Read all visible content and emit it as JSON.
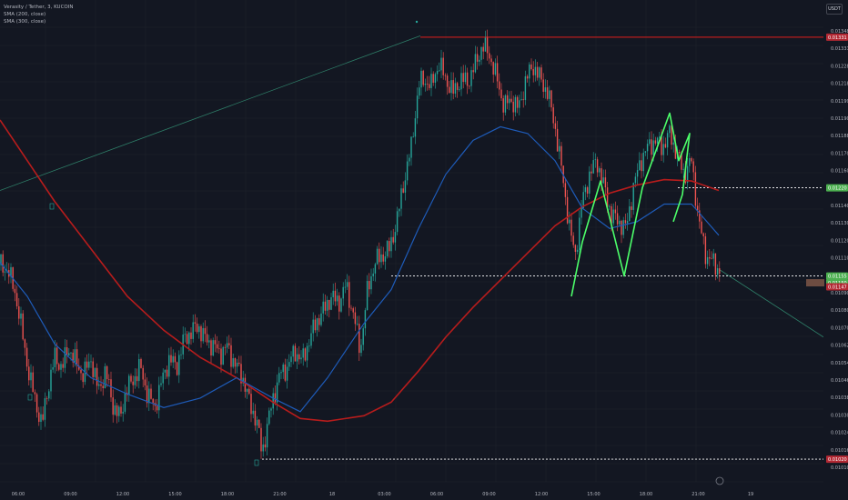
{
  "legend": {
    "symbol": "Verasity / Tether, 3, KUCOIN",
    "sma200": "SMA (200, close)",
    "sma300": "SMA (300, close)"
  },
  "currency": "USDT",
  "price_axis": {
    "ticks": [
      "0.01348",
      "0.01331",
      "0.01228",
      "0.01218",
      "0.01199",
      "0.01190",
      "0.01188",
      "0.01170",
      "0.01160",
      "0.01150",
      "0.01140",
      "0.01130",
      "0.01120",
      "0.01110",
      "0.01100",
      "0.01090",
      "0.01080",
      "0.01070",
      "0.01062",
      "0.01054",
      "0.01046",
      "0.01038",
      "0.01030",
      "0.01024",
      "0.01016",
      "0.01010"
    ],
    "labels": {
      "high": "0.01331",
      "upper": "0.01220",
      "mid": "0.01155",
      "last_a": "0.01150",
      "last_b": "0.01147",
      "low": "0.01020"
    }
  },
  "time_axis": [
    "06:00",
    "09:00",
    "12:00",
    "15:00",
    "18:00",
    "21:00",
    "18",
    "03:00",
    "06:00",
    "09:00",
    "12:00",
    "15:00",
    "18:00",
    "21:00",
    "19"
  ],
  "colors": {
    "background": "#131722",
    "grid": "#1e222d",
    "candle_up": "#26a69a",
    "candle_down": "#ef5350",
    "sma200": "#b71c1c",
    "sma300": "#1e5bb8",
    "pattern": "#4cff6a",
    "label_red": "#b22833",
    "label_green": "#4caf50"
  },
  "chart_data": {
    "type": "candlestick",
    "title": "Verasity / Tether, 3, KUCOIN",
    "ylim": [
      0.0101,
      0.01345
    ],
    "close_path": [
      [
        0,
        0.01163
      ],
      [
        8,
        0.0116
      ],
      [
        16,
        0.01145
      ],
      [
        24,
        0.01115
      ],
      [
        32,
        0.01082
      ],
      [
        40,
        0.0106
      ],
      [
        46,
        0.01045
      ],
      [
        52,
        0.0107
      ],
      [
        60,
        0.01095
      ],
      [
        68,
        0.01088
      ],
      [
        76,
        0.01102
      ],
      [
        84,
        0.0109
      ],
      [
        92,
        0.01082
      ],
      [
        100,
        0.01094
      ],
      [
        108,
        0.0107
      ],
      [
        116,
        0.01085
      ],
      [
        124,
        0.0106
      ],
      [
        132,
        0.0105
      ],
      [
        138,
        0.0107
      ],
      [
        146,
        0.01078
      ],
      [
        154,
        0.01088
      ],
      [
        162,
        0.01068
      ],
      [
        170,
        0.01058
      ],
      [
        178,
        0.01078
      ],
      [
        186,
        0.01094
      ],
      [
        194,
        0.01088
      ],
      [
        202,
        0.01108
      ],
      [
        210,
        0.01114
      ],
      [
        218,
        0.01118
      ],
      [
        226,
        0.01108
      ],
      [
        234,
        0.01104
      ],
      [
        242,
        0.01098
      ],
      [
        250,
        0.01103
      ],
      [
        258,
        0.0109
      ],
      [
        266,
        0.01082
      ],
      [
        274,
        0.01062
      ],
      [
        282,
        0.01048
      ],
      [
        288,
        0.01025
      ],
      [
        294,
        0.01045
      ],
      [
        300,
        0.01065
      ],
      [
        308,
        0.01083
      ],
      [
        316,
        0.01088
      ],
      [
        324,
        0.011
      ],
      [
        332,
        0.01092
      ],
      [
        340,
        0.01108
      ],
      [
        348,
        0.01122
      ],
      [
        356,
        0.0113
      ],
      [
        364,
        0.0114
      ],
      [
        372,
        0.01135
      ],
      [
        380,
        0.01148
      ],
      [
        388,
        0.01128
      ],
      [
        396,
        0.011
      ],
      [
        404,
        0.01145
      ],
      [
        412,
        0.01165
      ],
      [
        420,
        0.0117
      ],
      [
        428,
        0.01175
      ],
      [
        436,
        0.01195
      ],
      [
        444,
        0.01225
      ],
      [
        452,
        0.0125
      ],
      [
        460,
        0.01295
      ],
      [
        466,
        0.013
      ],
      [
        474,
        0.01295
      ],
      [
        482,
        0.01312
      ],
      [
        490,
        0.013
      ],
      [
        498,
        0.0129
      ],
      [
        506,
        0.013
      ],
      [
        514,
        0.01298
      ],
      [
        522,
        0.0131
      ],
      [
        530,
        0.01325
      ],
      [
        538,
        0.01318
      ],
      [
        546,
        0.013
      ],
      [
        554,
        0.0128
      ],
      [
        562,
        0.01285
      ],
      [
        570,
        0.01278
      ],
      [
        578,
        0.013
      ],
      [
        586,
        0.0131
      ],
      [
        594,
        0.013
      ],
      [
        602,
        0.0129
      ],
      [
        610,
        0.01265
      ],
      [
        618,
        0.0123
      ],
      [
        626,
        0.0119
      ],
      [
        632,
        0.0117
      ],
      [
        640,
        0.0121
      ],
      [
        648,
        0.0123
      ],
      [
        656,
        0.0124
      ],
      [
        664,
        0.0122
      ],
      [
        672,
        0.012
      ],
      [
        680,
        0.01195
      ],
      [
        688,
        0.0119
      ],
      [
        696,
        0.0122
      ],
      [
        704,
        0.0124
      ],
      [
        712,
        0.0125
      ],
      [
        720,
        0.01255
      ],
      [
        728,
        0.0125
      ],
      [
        736,
        0.0126
      ],
      [
        744,
        0.01245
      ],
      [
        752,
        0.0123
      ],
      [
        760,
        0.0124
      ],
      [
        768,
        0.01195
      ],
      [
        776,
        0.0117
      ],
      [
        784,
        0.01165
      ],
      [
        792,
        0.01158
      ]
    ],
    "sma300_path": [
      [
        0,
        0.01165
      ],
      [
        30,
        0.0114
      ],
      [
        60,
        0.01105
      ],
      [
        100,
        0.0108
      ],
      [
        140,
        0.01068
      ],
      [
        180,
        0.01058
      ],
      [
        220,
        0.01065
      ],
      [
        260,
        0.0108
      ],
      [
        300,
        0.01065
      ],
      [
        330,
        0.01055
      ],
      [
        360,
        0.0108
      ],
      [
        400,
        0.0112
      ],
      [
        430,
        0.01145
      ],
      [
        460,
        0.0119
      ],
      [
        490,
        0.0123
      ],
      [
        520,
        0.01255
      ],
      [
        550,
        0.01265
      ],
      [
        580,
        0.0126
      ],
      [
        610,
        0.0124
      ],
      [
        640,
        0.01205
      ],
      [
        670,
        0.0119
      ],
      [
        700,
        0.01195
      ],
      [
        730,
        0.01208
      ],
      [
        760,
        0.01208
      ],
      [
        790,
        0.01185
      ]
    ],
    "sma200_path": [
      [
        0,
        0.0127
      ],
      [
        30,
        0.0124
      ],
      [
        60,
        0.0121
      ],
      [
        100,
        0.01175
      ],
      [
        140,
        0.0114
      ],
      [
        180,
        0.01115
      ],
      [
        220,
        0.01095
      ],
      [
        260,
        0.0108
      ],
      [
        300,
        0.01062
      ],
      [
        330,
        0.0105
      ],
      [
        360,
        0.01048
      ],
      [
        400,
        0.01052
      ],
      [
        430,
        0.01062
      ],
      [
        460,
        0.01085
      ],
      [
        490,
        0.0111
      ],
      [
        520,
        0.01132
      ],
      [
        550,
        0.01152
      ],
      [
        580,
        0.01172
      ],
      [
        610,
        0.01192
      ],
      [
        640,
        0.01206
      ],
      [
        670,
        0.01216
      ],
      [
        700,
        0.01222
      ],
      [
        730,
        0.01226
      ],
      [
        760,
        0.01225
      ],
      [
        790,
        0.01218
      ]
    ],
    "pattern_path": [
      [
        628,
        0.0114
      ],
      [
        640,
        0.0118
      ],
      [
        660,
        0.01225
      ],
      [
        686,
        0.01155
      ],
      [
        706,
        0.0122
      ],
      [
        736,
        0.01275
      ],
      [
        746,
        0.0124
      ],
      [
        758,
        0.0126
      ],
      [
        750,
        0.01215
      ],
      [
        740,
        0.01195
      ]
    ],
    "levels": {
      "high": 0.01331,
      "upper": 0.0122,
      "mid": 0.01155,
      "low": 0.0102
    },
    "trendlines": [
      [
        [
          0,
          0.01218
        ],
        [
          462,
          0.01332
        ]
      ],
      [
        [
          790,
          0.0116
        ],
        [
          905,
          0.0111
        ]
      ]
    ]
  }
}
